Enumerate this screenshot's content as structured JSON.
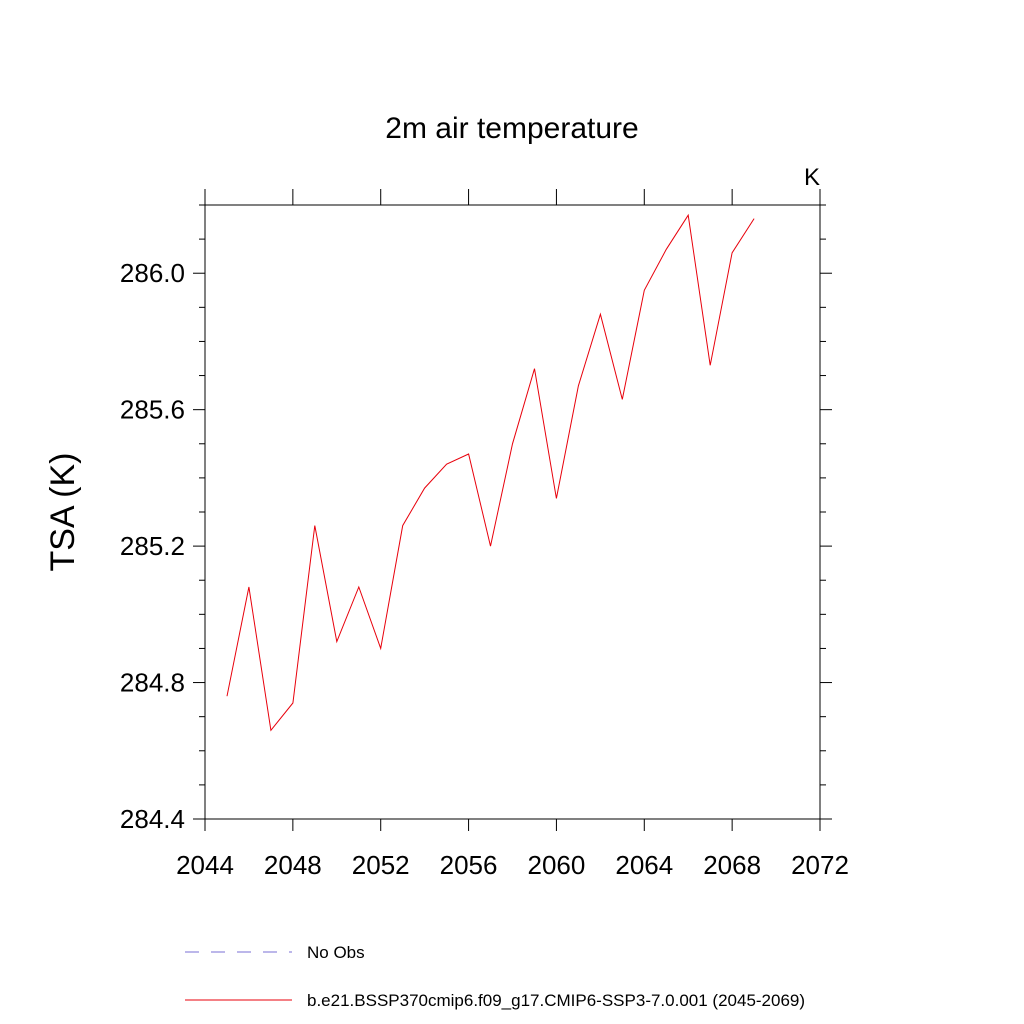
{
  "chart_data": {
    "type": "line",
    "title": "2m air temperature",
    "units_label": "K",
    "ylabel": "TSA  (K)",
    "xlabel": "",
    "xlim": [
      2044,
      2072
    ],
    "ylim": [
      284.4,
      286.2
    ],
    "x_ticks": [
      2044,
      2048,
      2052,
      2056,
      2060,
      2064,
      2068,
      2072
    ],
    "x_tick_labels": [
      "2044",
      "2048",
      "2052",
      "2056",
      "2060",
      "2064",
      "2068",
      "2072"
    ],
    "y_ticks": [
      284.4,
      284.8,
      285.2,
      285.6,
      286.0
    ],
    "y_tick_labels": [
      "284.4",
      "284.8",
      "285.2",
      "285.6",
      "286.0"
    ],
    "grid": false,
    "legend_position": "bottom",
    "series": [
      {
        "name": "b.e21.BSSP370cmip6.f09_g17.CMIP6-SSP3-7.0.001 (2045-2069)",
        "color": "#e8000b",
        "style": "solid",
        "x": [
          2045,
          2046,
          2047,
          2048,
          2049,
          2050,
          2051,
          2052,
          2053,
          2054,
          2055,
          2056,
          2057,
          2058,
          2059,
          2060,
          2061,
          2062,
          2063,
          2064,
          2065,
          2066,
          2067,
          2068,
          2069
        ],
        "y": [
          284.76,
          285.08,
          284.66,
          284.74,
          285.26,
          284.92,
          285.08,
          284.9,
          285.26,
          285.37,
          285.44,
          285.47,
          285.2,
          285.5,
          285.72,
          285.34,
          285.67,
          285.88,
          285.63,
          285.95,
          286.07,
          286.17,
          285.73,
          286.06,
          286.16
        ]
      }
    ],
    "legend": [
      {
        "label": "No Obs",
        "color": "#7a6fd6",
        "style": "dashed"
      },
      {
        "label": "b.e21.BSSP370cmip6.f09_g17.CMIP6-SSP3-7.0.001 (2045-2069)",
        "color": "#e8000b",
        "style": "solid"
      }
    ]
  }
}
